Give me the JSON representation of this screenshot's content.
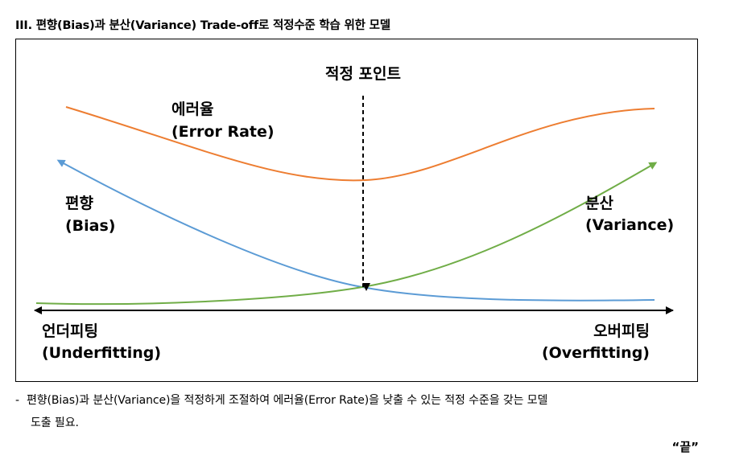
{
  "header": {
    "title": "III. 편향(Bias)과 분산(Variance) Trade-off로 적정수준 학습 위한 모델"
  },
  "diagram": {
    "optimal_point_label": "적정 포인트",
    "error_rate": {
      "line1": "에러율",
      "line2": "(Error Rate)",
      "color": "#ED7D31"
    },
    "bias": {
      "line1": "편향",
      "line2": "(Bias)",
      "color": "#5B9BD5"
    },
    "variance": {
      "line1": "분산",
      "line2": "(Variance)",
      "color": "#70AD47"
    },
    "underfitting": {
      "line1": "언더피팅",
      "line2": "(Underfitting)"
    },
    "overfitting": {
      "line1": "오버피팅",
      "line2": "(Overfitting)"
    }
  },
  "note": {
    "bullet": "-",
    "line1": "편향(Bias)과 분산(Variance)을 적정하게 조절하여 에러율(Error Rate)을 낮출 수 있는 적정 수준을 갖는 모델",
    "line2": "도출 필요."
  },
  "footer": {
    "end_mark": "“끝”"
  }
}
